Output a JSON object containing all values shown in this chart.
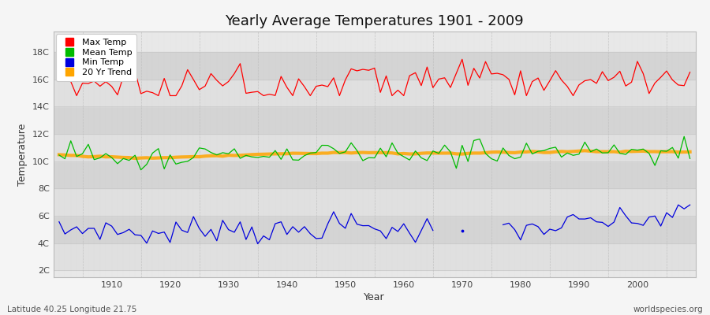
{
  "title": "Yearly Average Temperatures 1901 - 2009",
  "xlabel": "Year",
  "ylabel": "Temperature",
  "lat_lon_label": "Latitude 40.25 Longitude 21.75",
  "watermark": "worldspecies.org",
  "year_start": 1901,
  "year_end": 2009,
  "yticks": [
    2,
    4,
    6,
    8,
    10,
    12,
    14,
    16,
    18
  ],
  "ytick_labels": [
    "2C",
    "4C",
    "6C",
    "8C",
    "10C",
    "12C",
    "14C",
    "16C",
    "18C"
  ],
  "ylim": [
    1.5,
    19.5
  ],
  "xlim": [
    1900,
    2010
  ],
  "colors": {
    "max_temp": "#ff0000",
    "mean_temp": "#00bb00",
    "min_temp": "#0000dd",
    "trend": "#ffa500",
    "fig_bg": "#f5f5f5",
    "plot_bg": "#e8e8e8",
    "h_grid": "#d8d8d8",
    "v_grid": "#cccccc"
  },
  "legend": {
    "labels": [
      "Max Temp",
      "Mean Temp",
      "Min Temp",
      "20 Yr Trend"
    ],
    "colors": [
      "#ff0000",
      "#00bb00",
      "#0000dd",
      "#ffa500"
    ]
  },
  "min_gap_start": 1966,
  "min_gap_end": 1976,
  "min_dot_year": 1970
}
